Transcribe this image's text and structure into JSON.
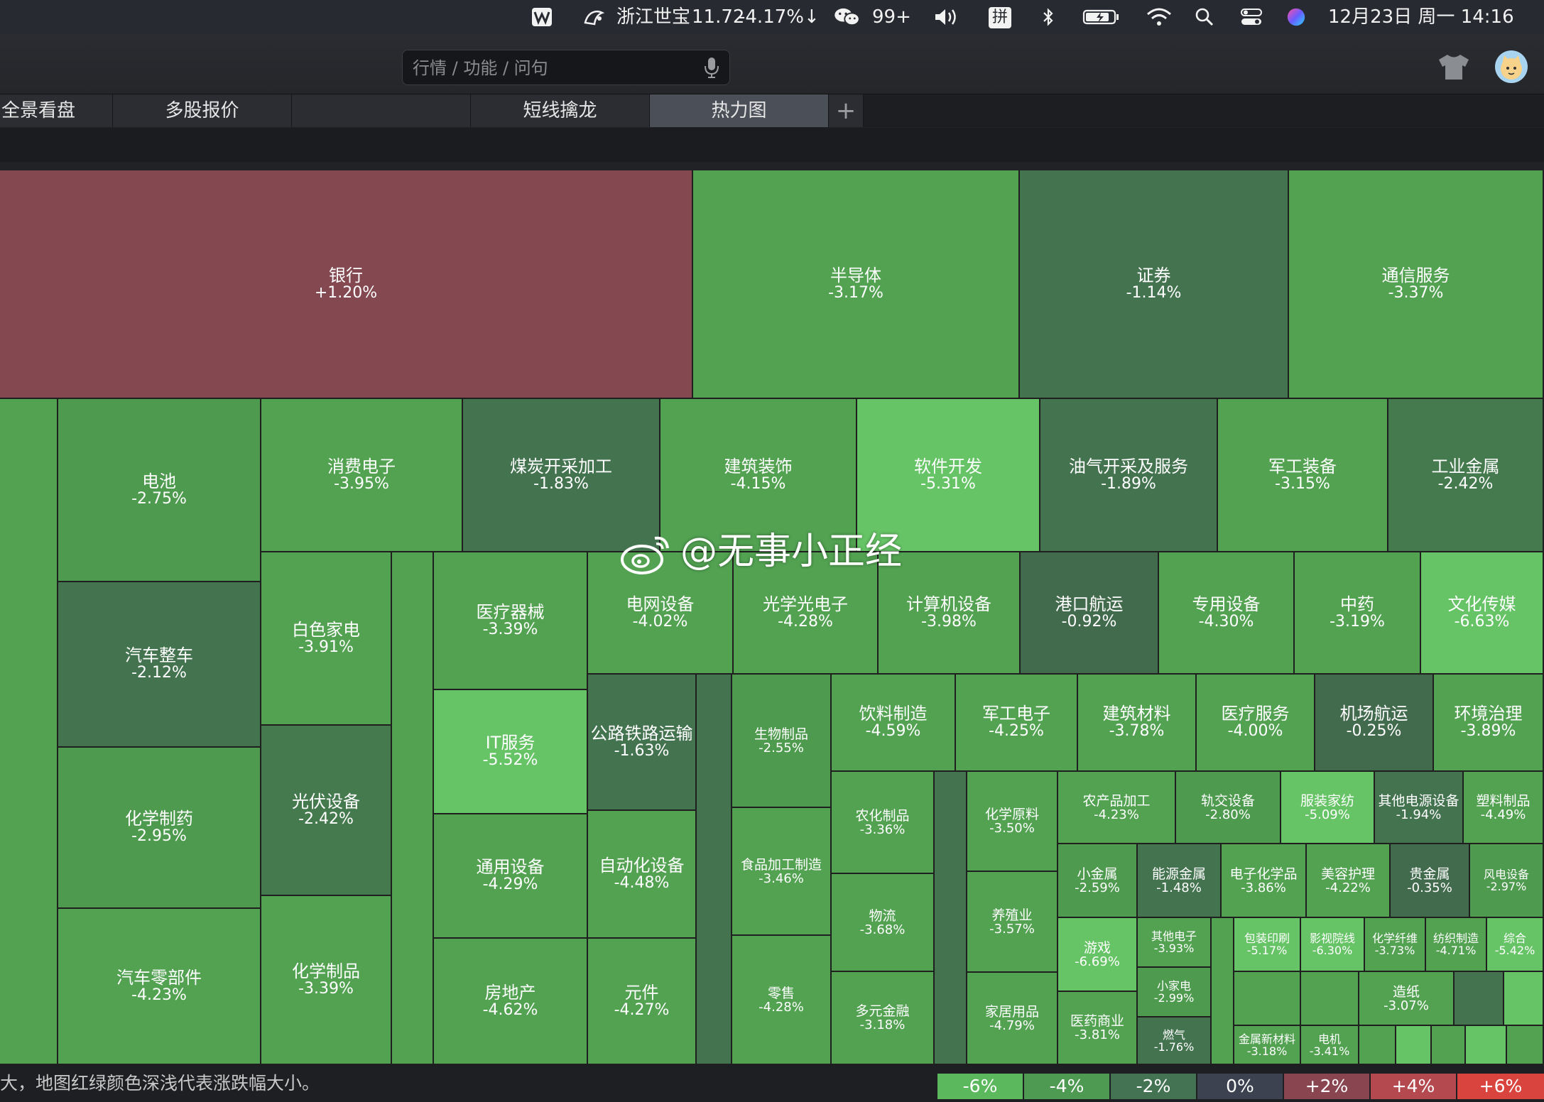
{
  "menubar": {
    "stock_name": "浙江世宝",
    "stock_price": "11.72",
    "stock_change": "-4.17%↓",
    "wechat_badge": "99+",
    "input_method": "拼",
    "datetime": "12月23日 周一  14:16"
  },
  "toolbar": {
    "search_placeholder": "行情 / 功能 / 问句"
  },
  "tabs": [
    {
      "label": "全景看盘"
    },
    {
      "label": "多股报价"
    },
    {
      "label": ""
    },
    {
      "label": "短线擒龙"
    },
    {
      "label": "热力图"
    },
    {
      "label": "+"
    }
  ],
  "heatmap": {
    "cells": [
      {
        "name": "银行",
        "pct": "+1.20%",
        "color": "#834850"
      },
      {
        "name": "半导体",
        "pct": "-3.17%",
        "color": "#52a252"
      },
      {
        "name": "证券",
        "pct": "-1.14%",
        "color": "#447350"
      },
      {
        "name": "通信服务",
        "pct": "-3.37%",
        "color": "#52a252"
      },
      {
        "name": "",
        "pct": "",
        "color": "#52a252"
      },
      {
        "name": "电池",
        "pct": "-2.75%",
        "color": "#4e9a4e"
      },
      {
        "name": "汽车整车",
        "pct": "-2.12%",
        "color": "#447350"
      },
      {
        "name": "化学制药",
        "pct": "-2.95%",
        "color": "#4e9a4e"
      },
      {
        "name": "汽车零部件",
        "pct": "-4.23%",
        "color": "#52a252"
      },
      {
        "name": "消费电子",
        "pct": "-3.95%",
        "color": "#52a252"
      },
      {
        "name": "煤炭开采加工",
        "pct": "-1.83%",
        "color": "#447350"
      },
      {
        "name": "建筑装饰",
        "pct": "-4.15%",
        "color": "#52a252"
      },
      {
        "name": "软件开发",
        "pct": "-5.31%",
        "color": "#66c466"
      },
      {
        "name": "油气开采及服务",
        "pct": "-1.89%",
        "color": "#447350"
      },
      {
        "name": "军工装备",
        "pct": "-3.15%",
        "color": "#52a252"
      },
      {
        "name": "工业金属",
        "pct": "-2.42%",
        "color": "#457a4f"
      },
      {
        "name": "白色家电",
        "pct": "-3.91%",
        "color": "#52a252"
      },
      {
        "name": "光伏设备",
        "pct": "-2.42%",
        "color": "#457a4f"
      },
      {
        "name": "化学制品",
        "pct": "-3.39%",
        "color": "#52a252"
      },
      {
        "name": "",
        "pct": "",
        "color": "#52a252"
      },
      {
        "name": "医疗器械",
        "pct": "-3.39%",
        "color": "#52a252"
      },
      {
        "name": "IT服务",
        "pct": "-5.52%",
        "color": "#66c466"
      },
      {
        "name": "通用设备",
        "pct": "-4.29%",
        "color": "#52a252"
      },
      {
        "name": "房地产",
        "pct": "-4.62%",
        "color": "#52a252"
      },
      {
        "name": "电网设备",
        "pct": "-4.02%",
        "color": "#52a252"
      },
      {
        "name": "光学光电子",
        "pct": "-4.28%",
        "color": "#52a252"
      },
      {
        "name": "计算机设备",
        "pct": "-3.98%",
        "color": "#52a252"
      },
      {
        "name": "港口航运",
        "pct": "-0.92%",
        "color": "#426a4d"
      },
      {
        "name": "专用设备",
        "pct": "-4.30%",
        "color": "#52a252"
      },
      {
        "name": "中药",
        "pct": "-3.19%",
        "color": "#52a252"
      },
      {
        "name": "文化传媒",
        "pct": "-6.63%",
        "color": "#66c466"
      },
      {
        "name": "公路铁路运输",
        "pct": "-1.63%",
        "color": "#447350"
      },
      {
        "name": "自动化设备",
        "pct": "-4.48%",
        "color": "#52a252"
      },
      {
        "name": "元件",
        "pct": "-4.27%",
        "color": "#52a252"
      },
      {
        "name": "",
        "pct": "",
        "color": "#447350"
      },
      {
        "name": "生物制品",
        "pct": "-2.55%",
        "color": "#4e9a4e"
      },
      {
        "name": "食品加工制造",
        "pct": "-3.46%",
        "color": "#52a252"
      },
      {
        "name": "零售",
        "pct": "-4.28%",
        "color": "#52a252"
      },
      {
        "name": "饮料制造",
        "pct": "-4.59%",
        "color": "#52a252"
      },
      {
        "name": "军工电子",
        "pct": "-4.25%",
        "color": "#52a252"
      },
      {
        "name": "建筑材料",
        "pct": "-3.78%",
        "color": "#52a252"
      },
      {
        "name": "医疗服务",
        "pct": "-4.00%",
        "color": "#52a252"
      },
      {
        "name": "机场航运",
        "pct": "-0.25%",
        "color": "#426a4d"
      },
      {
        "name": "环境治理",
        "pct": "-3.89%",
        "color": "#52a252"
      },
      {
        "name": "农化制品",
        "pct": "-3.36%",
        "color": "#52a252"
      },
      {
        "name": "物流",
        "pct": "-3.68%",
        "color": "#52a252"
      },
      {
        "name": "多元金融",
        "pct": "-3.18%",
        "color": "#52a252"
      },
      {
        "name": "",
        "pct": "",
        "color": "#447350"
      },
      {
        "name": "化学原料",
        "pct": "-3.50%",
        "color": "#52a252"
      },
      {
        "name": "养殖业",
        "pct": "-3.57%",
        "color": "#52a252"
      },
      {
        "name": "家居用品",
        "pct": "-4.79%",
        "color": "#52a252"
      },
      {
        "name": "农产品加工",
        "pct": "-4.23%",
        "color": "#52a252"
      },
      {
        "name": "轨交设备",
        "pct": "-2.80%",
        "color": "#4e9a4e"
      },
      {
        "name": "服装家纺",
        "pct": "-5.09%",
        "color": "#66c466"
      },
      {
        "name": "其他电源设备",
        "pct": "-1.94%",
        "color": "#447350"
      },
      {
        "name": "塑料制品",
        "pct": "-4.49%",
        "color": "#52a252"
      },
      {
        "name": "小金属",
        "pct": "-2.59%",
        "color": "#4e9a4e"
      },
      {
        "name": "游戏",
        "pct": "-6.69%",
        "color": "#66c466"
      },
      {
        "name": "医药商业",
        "pct": "-3.81%",
        "color": "#52a252"
      },
      {
        "name": "能源金属",
        "pct": "-1.48%",
        "color": "#447350"
      },
      {
        "name": "电子化学品",
        "pct": "-3.86%",
        "color": "#52a252"
      },
      {
        "name": "美容护理",
        "pct": "-4.22%",
        "color": "#52a252"
      },
      {
        "name": "贵金属",
        "pct": "-0.35%",
        "color": "#426a4d"
      },
      {
        "name": "风电设备",
        "pct": "-2.97%",
        "color": "#4e9a4e"
      },
      {
        "name": "其他电子",
        "pct": "-3.93%",
        "color": "#52a252"
      },
      {
        "name": "小家电",
        "pct": "-2.99%",
        "color": "#4e9a4e"
      },
      {
        "name": "燃气",
        "pct": "-1.76%",
        "color": "#447350"
      },
      {
        "name": "",
        "pct": "",
        "color": "#52a252"
      },
      {
        "name": "包装印刷",
        "pct": "-5.17%",
        "color": "#66c466"
      },
      {
        "name": "影视院线",
        "pct": "-6.30%",
        "color": "#66c466"
      },
      {
        "name": "化学纤维",
        "pct": "-3.73%",
        "color": "#52a252"
      },
      {
        "name": "纺织制造",
        "pct": "-4.71%",
        "color": "#52a252"
      },
      {
        "name": "综合",
        "pct": "-5.42%",
        "color": "#66c466"
      },
      {
        "name": "",
        "pct": "",
        "color": "#52a252"
      },
      {
        "name": "",
        "pct": "",
        "color": "#52a252"
      },
      {
        "name": "造纸",
        "pct": "-3.07%",
        "color": "#52a252"
      },
      {
        "name": "",
        "pct": "",
        "color": "#447350"
      },
      {
        "name": "",
        "pct": "",
        "color": "#66c466"
      },
      {
        "name": "金属新材料",
        "pct": "-3.18%",
        "color": "#52a252"
      },
      {
        "name": "电机",
        "pct": "-3.41%",
        "color": "#52a252"
      },
      {
        "name": "",
        "pct": "",
        "color": "#52a252"
      },
      {
        "name": "",
        "pct": "",
        "color": "#66c466"
      },
      {
        "name": "",
        "pct": "",
        "color": "#52a252"
      },
      {
        "name": "",
        "pct": "",
        "color": "#66c466"
      },
      {
        "name": "",
        "pct": "",
        "color": "#52a252"
      },
      {
        "name": "",
        "pct": "",
        "color": "#52a252"
      }
    ]
  },
  "watermark": "@无事小正经",
  "footer": {
    "hint": "大，地图红绿颜色深浅代表涨跌幅大小。",
    "legend": [
      {
        "label": "-6%",
        "color": "#5cb85c"
      },
      {
        "label": "-4%",
        "color": "#4f9a52"
      },
      {
        "label": "-2%",
        "color": "#437352"
      },
      {
        "label": "0%",
        "color": "#3c4250"
      },
      {
        "label": "+2%",
        "color": "#8a4650"
      },
      {
        "label": "+4%",
        "color": "#b44a4f"
      },
      {
        "label": "+6%",
        "color": "#d9443f"
      }
    ]
  }
}
